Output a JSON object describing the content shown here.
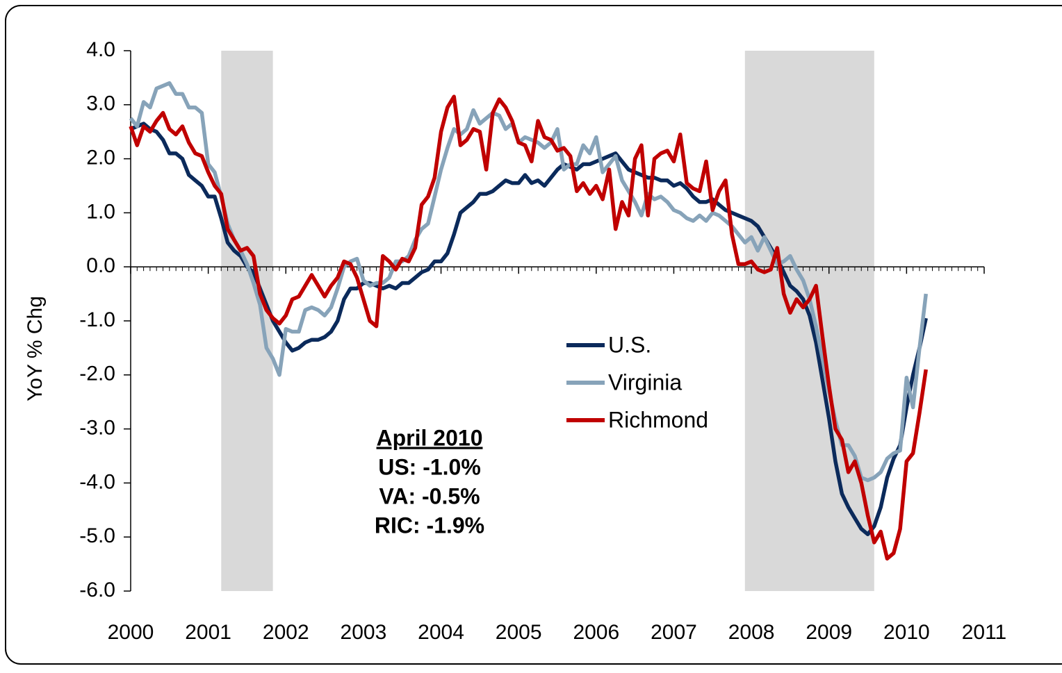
{
  "chart_data": {
    "type": "line",
    "y_label": "YoY % Chg",
    "annotation": [
      "April 2010",
      "US: -1.0%",
      "VA: -0.5%",
      "RIC: -1.9%"
    ],
    "xlim": [
      2000,
      2011
    ],
    "xticks": [
      2000,
      2001,
      2002,
      2003,
      2004,
      2005,
      2006,
      2007,
      2008,
      2009,
      2010,
      2011
    ],
    "ylim": [
      -6,
      4
    ],
    "yticks": [
      {
        "value": 4,
        "label": "4.0"
      },
      {
        "value": 3,
        "label": "3.0"
      },
      {
        "value": 2,
        "label": "2.0"
      },
      {
        "value": 1,
        "label": "1.0"
      },
      {
        "value": 0,
        "label": "0.0"
      },
      {
        "value": -1,
        "label": "-1.0"
      },
      {
        "value": -2,
        "label": "-2.0"
      },
      {
        "value": -3,
        "label": "-3.0"
      },
      {
        "value": -4,
        "label": "-4.0"
      },
      {
        "value": -5,
        "label": "-5.0"
      },
      {
        "value": -6,
        "label": "-6.0"
      }
    ],
    "shaded_regions": [
      [
        2001.167,
        2001.833
      ],
      [
        2007.917,
        2009.583
      ]
    ],
    "shade_color": "#d9d9d9",
    "x": [
      2000,
      2000.083,
      2000.167,
      2000.25,
      2000.333,
      2000.417,
      2000.5,
      2000.583,
      2000.667,
      2000.75,
      2000.833,
      2000.917,
      2001,
      2001.083,
      2001.167,
      2001.25,
      2001.333,
      2001.417,
      2001.5,
      2001.583,
      2001.667,
      2001.75,
      2001.833,
      2001.917,
      2002,
      2002.083,
      2002.167,
      2002.25,
      2002.333,
      2002.417,
      2002.5,
      2002.583,
      2002.667,
      2002.75,
      2002.833,
      2002.917,
      2003,
      2003.083,
      2003.167,
      2003.25,
      2003.333,
      2003.417,
      2003.5,
      2003.583,
      2003.667,
      2003.75,
      2003.833,
      2003.917,
      2004,
      2004.083,
      2004.167,
      2004.25,
      2004.333,
      2004.417,
      2004.5,
      2004.583,
      2004.667,
      2004.75,
      2004.833,
      2004.917,
      2005,
      2005.083,
      2005.167,
      2005.25,
      2005.333,
      2005.417,
      2005.5,
      2005.583,
      2005.667,
      2005.75,
      2005.833,
      2005.917,
      2006,
      2006.083,
      2006.167,
      2006.25,
      2006.333,
      2006.417,
      2006.5,
      2006.583,
      2006.667,
      2006.75,
      2006.833,
      2006.917,
      2007,
      2007.083,
      2007.167,
      2007.25,
      2007.333,
      2007.417,
      2007.5,
      2007.583,
      2007.667,
      2007.75,
      2007.833,
      2007.917,
      2008,
      2008.083,
      2008.167,
      2008.25,
      2008.333,
      2008.417,
      2008.5,
      2008.583,
      2008.667,
      2008.75,
      2008.833,
      2008.917,
      2009,
      2009.083,
      2009.167,
      2009.25,
      2009.333,
      2009.417,
      2009.5,
      2009.583,
      2009.667,
      2009.75,
      2009.833,
      2009.917,
      2010,
      2010.083,
      2010.167,
      2010.25
    ],
    "series": [
      {
        "name": "U.S.",
        "color": "#0b2a5b",
        "values": [
          2.55,
          2.6,
          2.65,
          2.55,
          2.5,
          2.35,
          2.1,
          2.1,
          2.0,
          1.7,
          1.6,
          1.5,
          1.3,
          1.3,
          0.9,
          0.45,
          0.3,
          0.2,
          0.0,
          -0.1,
          -0.4,
          -0.7,
          -1.0,
          -1.2,
          -1.4,
          -1.55,
          -1.5,
          -1.4,
          -1.35,
          -1.35,
          -1.3,
          -1.2,
          -1.0,
          -0.6,
          -0.4,
          -0.4,
          -0.3,
          -0.3,
          -0.35,
          -0.4,
          -0.35,
          -0.4,
          -0.3,
          -0.3,
          -0.2,
          -0.1,
          -0.05,
          0.1,
          0.1,
          0.25,
          0.6,
          1.0,
          1.1,
          1.2,
          1.35,
          1.35,
          1.4,
          1.5,
          1.6,
          1.55,
          1.55,
          1.7,
          1.55,
          1.6,
          1.5,
          1.65,
          1.8,
          1.9,
          1.85,
          1.8,
          1.9,
          1.9,
          1.95,
          2.0,
          2.05,
          2.1,
          1.95,
          1.8,
          1.75,
          1.7,
          1.65,
          1.65,
          1.6,
          1.6,
          1.5,
          1.55,
          1.45,
          1.3,
          1.2,
          1.2,
          1.25,
          1.15,
          1.05,
          1.0,
          0.95,
          0.9,
          0.85,
          0.75,
          0.55,
          0.35,
          0.15,
          -0.1,
          -0.35,
          -0.45,
          -0.6,
          -0.9,
          -1.4,
          -2.1,
          -2.8,
          -3.6,
          -4.2,
          -4.45,
          -4.65,
          -4.85,
          -4.95,
          -4.8,
          -4.45,
          -3.9,
          -3.55,
          -3.3,
          -2.6,
          -2.0,
          -1.5,
          -0.95
        ]
      },
      {
        "name": "Virginia",
        "color": "#87a3b9",
        "values": [
          2.75,
          2.6,
          3.05,
          2.95,
          3.3,
          3.35,
          3.4,
          3.2,
          3.2,
          2.95,
          2.95,
          2.85,
          1.9,
          1.75,
          1.3,
          0.8,
          0.5,
          0.3,
          0.05,
          -0.3,
          -0.7,
          -1.5,
          -1.7,
          -2.0,
          -1.15,
          -1.2,
          -1.2,
          -0.8,
          -0.75,
          -0.8,
          -0.9,
          -0.75,
          -0.4,
          0.0,
          0.1,
          0.15,
          -0.25,
          -0.35,
          -0.3,
          -0.3,
          -0.2,
          0.1,
          0.1,
          0.2,
          0.5,
          0.7,
          0.8,
          1.3,
          1.8,
          2.2,
          2.55,
          2.45,
          2.55,
          2.9,
          2.65,
          2.75,
          2.85,
          2.8,
          2.55,
          2.65,
          2.3,
          2.4,
          2.35,
          2.3,
          2.2,
          2.3,
          2.55,
          1.8,
          1.9,
          1.9,
          2.25,
          2.1,
          2.4,
          1.75,
          1.9,
          2.05,
          1.6,
          1.4,
          1.2,
          0.95,
          1.35,
          1.25,
          1.3,
          1.2,
          1.05,
          1.0,
          0.9,
          0.85,
          0.95,
          0.85,
          1.0,
          0.95,
          0.85,
          0.75,
          0.6,
          0.45,
          0.55,
          0.3,
          0.55,
          0.3,
          0.05,
          0.1,
          0.2,
          -0.05,
          -0.25,
          -0.6,
          -1.1,
          -1.7,
          -2.3,
          -2.85,
          -3.3,
          -3.3,
          -3.5,
          -3.9,
          -3.95,
          -3.9,
          -3.8,
          -3.55,
          -3.45,
          -3.4,
          -2.05,
          -2.6,
          -1.5,
          -0.5
        ]
      },
      {
        "name": "Richmond",
        "color": "#c00000",
        "values": [
          2.6,
          2.25,
          2.6,
          2.5,
          2.7,
          2.85,
          2.55,
          2.45,
          2.6,
          2.3,
          2.1,
          2.05,
          1.75,
          1.5,
          1.35,
          0.7,
          0.5,
          0.3,
          0.35,
          0.2,
          -0.5,
          -0.8,
          -0.95,
          -1.05,
          -0.9,
          -0.6,
          -0.55,
          -0.35,
          -0.15,
          -0.35,
          -0.55,
          -0.35,
          -0.2,
          0.1,
          0.05,
          -0.2,
          -0.6,
          -1.0,
          -1.1,
          0.2,
          0.1,
          -0.05,
          0.15,
          0.1,
          0.35,
          1.15,
          1.3,
          1.65,
          2.5,
          2.95,
          3.15,
          2.25,
          2.35,
          2.55,
          2.5,
          1.8,
          2.85,
          3.1,
          2.95,
          2.7,
          2.3,
          2.25,
          1.95,
          2.7,
          2.4,
          2.35,
          2.15,
          2.2,
          2.05,
          1.4,
          1.55,
          1.35,
          1.5,
          1.25,
          1.8,
          0.7,
          1.2,
          0.95,
          2.0,
          2.25,
          0.95,
          2.0,
          2.1,
          2.15,
          1.95,
          2.45,
          1.55,
          1.45,
          1.4,
          1.95,
          1.05,
          1.4,
          1.6,
          0.6,
          0.05,
          0.05,
          0.1,
          -0.05,
          -0.1,
          -0.05,
          0.35,
          -0.5,
          -0.85,
          -0.6,
          -0.75,
          -0.6,
          -0.35,
          -1.3,
          -2.2,
          -3.0,
          -3.2,
          -3.8,
          -3.6,
          -4.0,
          -4.6,
          -5.1,
          -4.9,
          -5.4,
          -5.3,
          -4.85,
          -3.6,
          -3.45,
          -2.7,
          -1.9
        ]
      }
    ]
  }
}
